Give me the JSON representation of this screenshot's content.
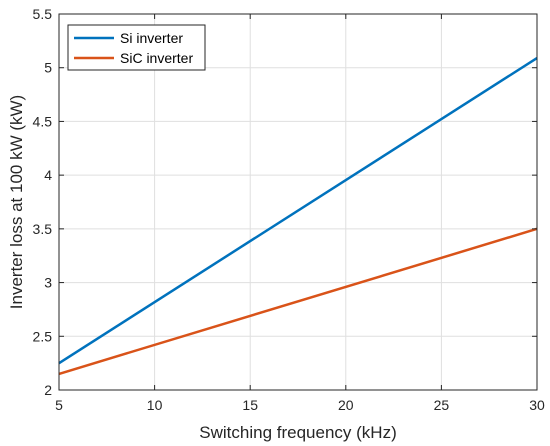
{
  "chart_data": {
    "type": "line",
    "xlabel": "Switching frequency (kHz)",
    "ylabel": "Inverter loss at 100 kW (kW)",
    "xlim": [
      5,
      30
    ],
    "ylim": [
      2,
      5.5
    ],
    "xticks": [
      5,
      10,
      15,
      20,
      25,
      30
    ],
    "yticks": [
      2,
      2.5,
      3,
      3.5,
      4,
      4.5,
      5,
      5.5
    ],
    "xtick_labels": [
      "5",
      "10",
      "15",
      "20",
      "25",
      "30"
    ],
    "ytick_labels": [
      "2",
      "2.5",
      "3",
      "3.5",
      "4",
      "4.5",
      "5",
      "5.5"
    ],
    "grid": true,
    "legend_position": "top-left",
    "series": [
      {
        "name": "Si inverter",
        "color": "#0072BD",
        "x": [
          5,
          30
        ],
        "y": [
          2.25,
          5.09
        ]
      },
      {
        "name": "SiC inverter",
        "color": "#D95319",
        "x": [
          5,
          30
        ],
        "y": [
          2.15,
          3.5
        ]
      }
    ]
  }
}
